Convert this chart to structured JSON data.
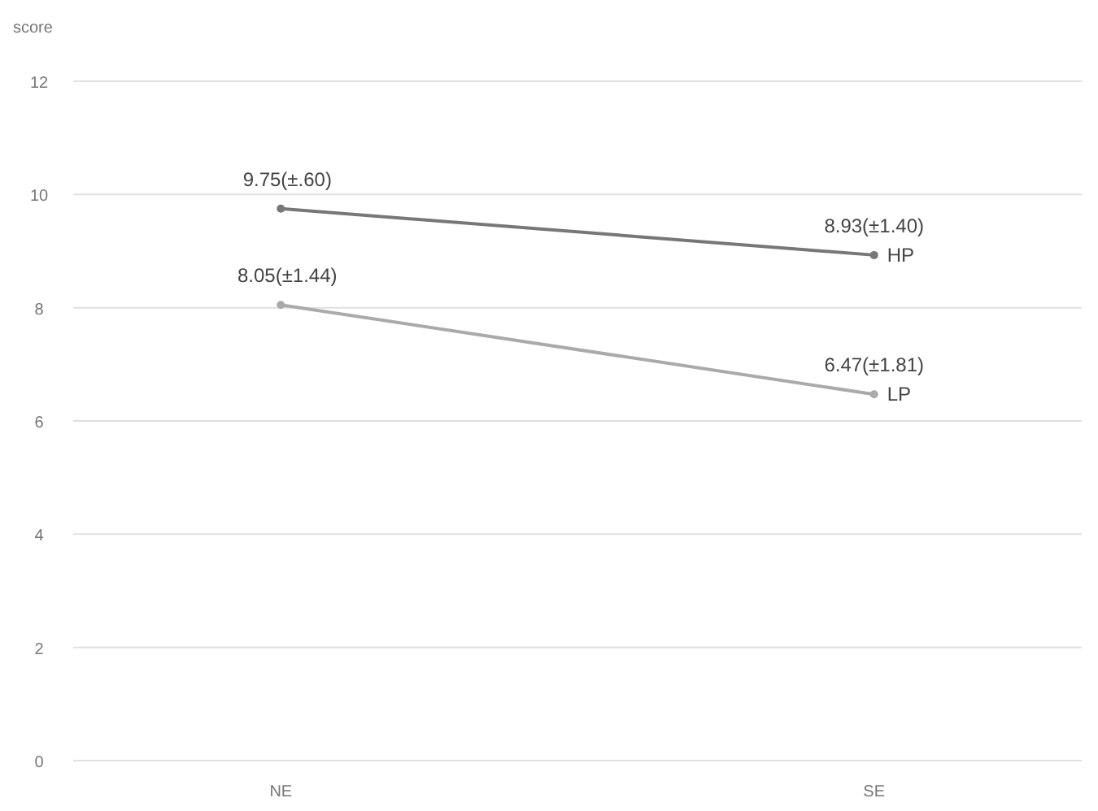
{
  "chart_data": {
    "type": "line",
    "ylabel": "score",
    "categories": [
      "NE",
      "SE"
    ],
    "series": [
      {
        "name": "HP",
        "color": "#777777",
        "values": [
          9.75,
          8.93
        ],
        "value_labels": [
          "9.75(±.60)",
          "8.93(±1.40)"
        ]
      },
      {
        "name": "LP",
        "color": "#aaaaaa",
        "values": [
          8.05,
          6.47
        ],
        "value_labels": [
          "8.05(±1.44)",
          "6.47(±1.81)"
        ]
      }
    ],
    "ylim": [
      0,
      12
    ],
    "yticks": [
      0,
      2,
      4,
      6,
      8,
      10,
      12
    ],
    "grid": "y",
    "marker": "circle",
    "line_style": "solid"
  }
}
